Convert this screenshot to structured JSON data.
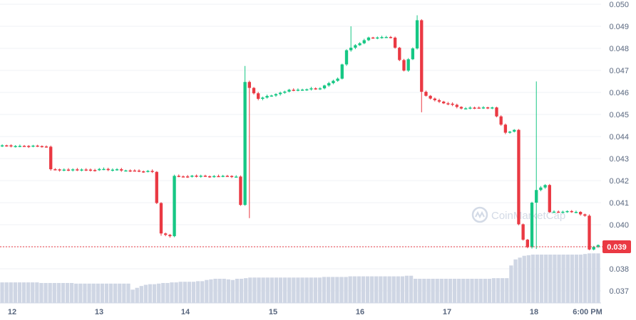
{
  "chart_data": {
    "type": "candlestick",
    "y_axis": {
      "position": "right",
      "ticks": [
        0.037,
        0.038,
        0.039,
        0.04,
        0.041,
        0.042,
        0.043,
        0.044,
        0.045,
        0.046,
        0.047,
        0.048,
        0.049,
        0.05
      ],
      "ylim": [
        0.0366,
        0.0501
      ]
    },
    "x_axis": {
      "labels": [
        "12",
        "13",
        "14",
        "15",
        "16",
        "17",
        "18",
        "6:00 PM"
      ]
    },
    "grid": "horizontal",
    "watermark": "CoinMarketCap",
    "current_price": {
      "value": 0.039,
      "label": "0.039",
      "color": "#ea3943"
    },
    "colors": {
      "up": "#16c784",
      "down": "#ea3943",
      "volume": "#cfd6e4",
      "grid": "#eff2f5"
    },
    "anchors": [
      {
        "i": 0,
        "p": 0.0436
      },
      {
        "i": 10,
        "p": 0.04355
      },
      {
        "i": 11,
        "p": 0.0425
      },
      {
        "i": 25,
        "p": 0.0425
      },
      {
        "i": 34,
        "p": 0.0424
      },
      {
        "i": 36,
        "p": 0.0396
      },
      {
        "i": 38,
        "p": 0.0395
      },
      {
        "i": 39,
        "p": 0.0422
      },
      {
        "i": 53,
        "p": 0.0422
      },
      {
        "i": 54,
        "p": 0.0409
      },
      {
        "i": 55,
        "p": 0.0465
      },
      {
        "i": 58,
        "p": 0.0457
      },
      {
        "i": 65,
        "p": 0.0461
      },
      {
        "i": 72,
        "p": 0.0462
      },
      {
        "i": 76,
        "p": 0.0466
      },
      {
        "i": 78,
        "p": 0.0479
      },
      {
        "i": 83,
        "p": 0.0485
      },
      {
        "i": 88,
        "p": 0.0485
      },
      {
        "i": 91,
        "p": 0.047
      },
      {
        "i": 93,
        "p": 0.048
      },
      {
        "i": 94,
        "p": 0.0493
      },
      {
        "i": 95,
        "p": 0.046
      },
      {
        "i": 97,
        "p": 0.0457
      },
      {
        "i": 104,
        "p": 0.0453
      },
      {
        "i": 111,
        "p": 0.0453
      },
      {
        "i": 114,
        "p": 0.0442
      },
      {
        "i": 116,
        "p": 0.0443
      },
      {
        "i": 117,
        "p": 0.04
      },
      {
        "i": 118,
        "p": 0.0393
      },
      {
        "i": 119,
        "p": 0.039
      },
      {
        "i": 120,
        "p": 0.041
      },
      {
        "i": 121,
        "p": 0.0416
      },
      {
        "i": 123,
        "p": 0.0418
      },
      {
        "i": 124,
        "p": 0.0406
      },
      {
        "i": 130,
        "p": 0.0406
      },
      {
        "i": 132,
        "p": 0.0404
      },
      {
        "i": 133,
        "p": 0.0389
      },
      {
        "i": 135,
        "p": 0.0391
      }
    ],
    "wicks": [
      {
        "i": 55,
        "high": 0.0472
      },
      {
        "i": 56,
        "low": 0.0403
      },
      {
        "i": 79,
        "high": 0.049
      },
      {
        "i": 94,
        "high": 0.0495
      },
      {
        "i": 95,
        "low": 0.0451
      },
      {
        "i": 121,
        "high": 0.0465
      },
      {
        "i": 121,
        "low": 0.0389
      },
      {
        "i": 36,
        "low": 0.0395
      }
    ],
    "volume": {
      "series": [
        0.34,
        0.34,
        0.34,
        0.34,
        0.34,
        0.34,
        0.34,
        0.34,
        0.34,
        0.33,
        0.33,
        0.33,
        0.33,
        0.33,
        0.33,
        0.33,
        0.33,
        0.32,
        0.32,
        0.32,
        0.32,
        0.32,
        0.32,
        0.32,
        0.32,
        0.32,
        0.32,
        0.32,
        0.32,
        0.32,
        0.22,
        0.25,
        0.28,
        0.3,
        0.31,
        0.31,
        0.32,
        0.33,
        0.33,
        0.34,
        0.34,
        0.35,
        0.35,
        0.35,
        0.35,
        0.36,
        0.36,
        0.38,
        0.39,
        0.4,
        0.4,
        0.4,
        0.39,
        0.38,
        0.4,
        0.4,
        0.41,
        0.42,
        0.42,
        0.42,
        0.42,
        0.42,
        0.42,
        0.42,
        0.42,
        0.42,
        0.42,
        0.42,
        0.42,
        0.42,
        0.42,
        0.42,
        0.42,
        0.42,
        0.43,
        0.43,
        0.43,
        0.43,
        0.43,
        0.43,
        0.44,
        0.44,
        0.44,
        0.44,
        0.44,
        0.44,
        0.44,
        0.44,
        0.44,
        0.44,
        0.44,
        0.44,
        0.44,
        0.45,
        0.45,
        0.4,
        0.4,
        0.4,
        0.4,
        0.4,
        0.4,
        0.4,
        0.4,
        0.4,
        0.4,
        0.4,
        0.4,
        0.4,
        0.4,
        0.4,
        0.4,
        0.4,
        0.4,
        0.41,
        0.41,
        0.41,
        0.41,
        0.62,
        0.72,
        0.75,
        0.78,
        0.79,
        0.8,
        0.8,
        0.8,
        0.8,
        0.8,
        0.8,
        0.8,
        0.8,
        0.8,
        0.8,
        0.8,
        0.8,
        0.81,
        0.82,
        0.82,
        0.82
      ]
    }
  }
}
